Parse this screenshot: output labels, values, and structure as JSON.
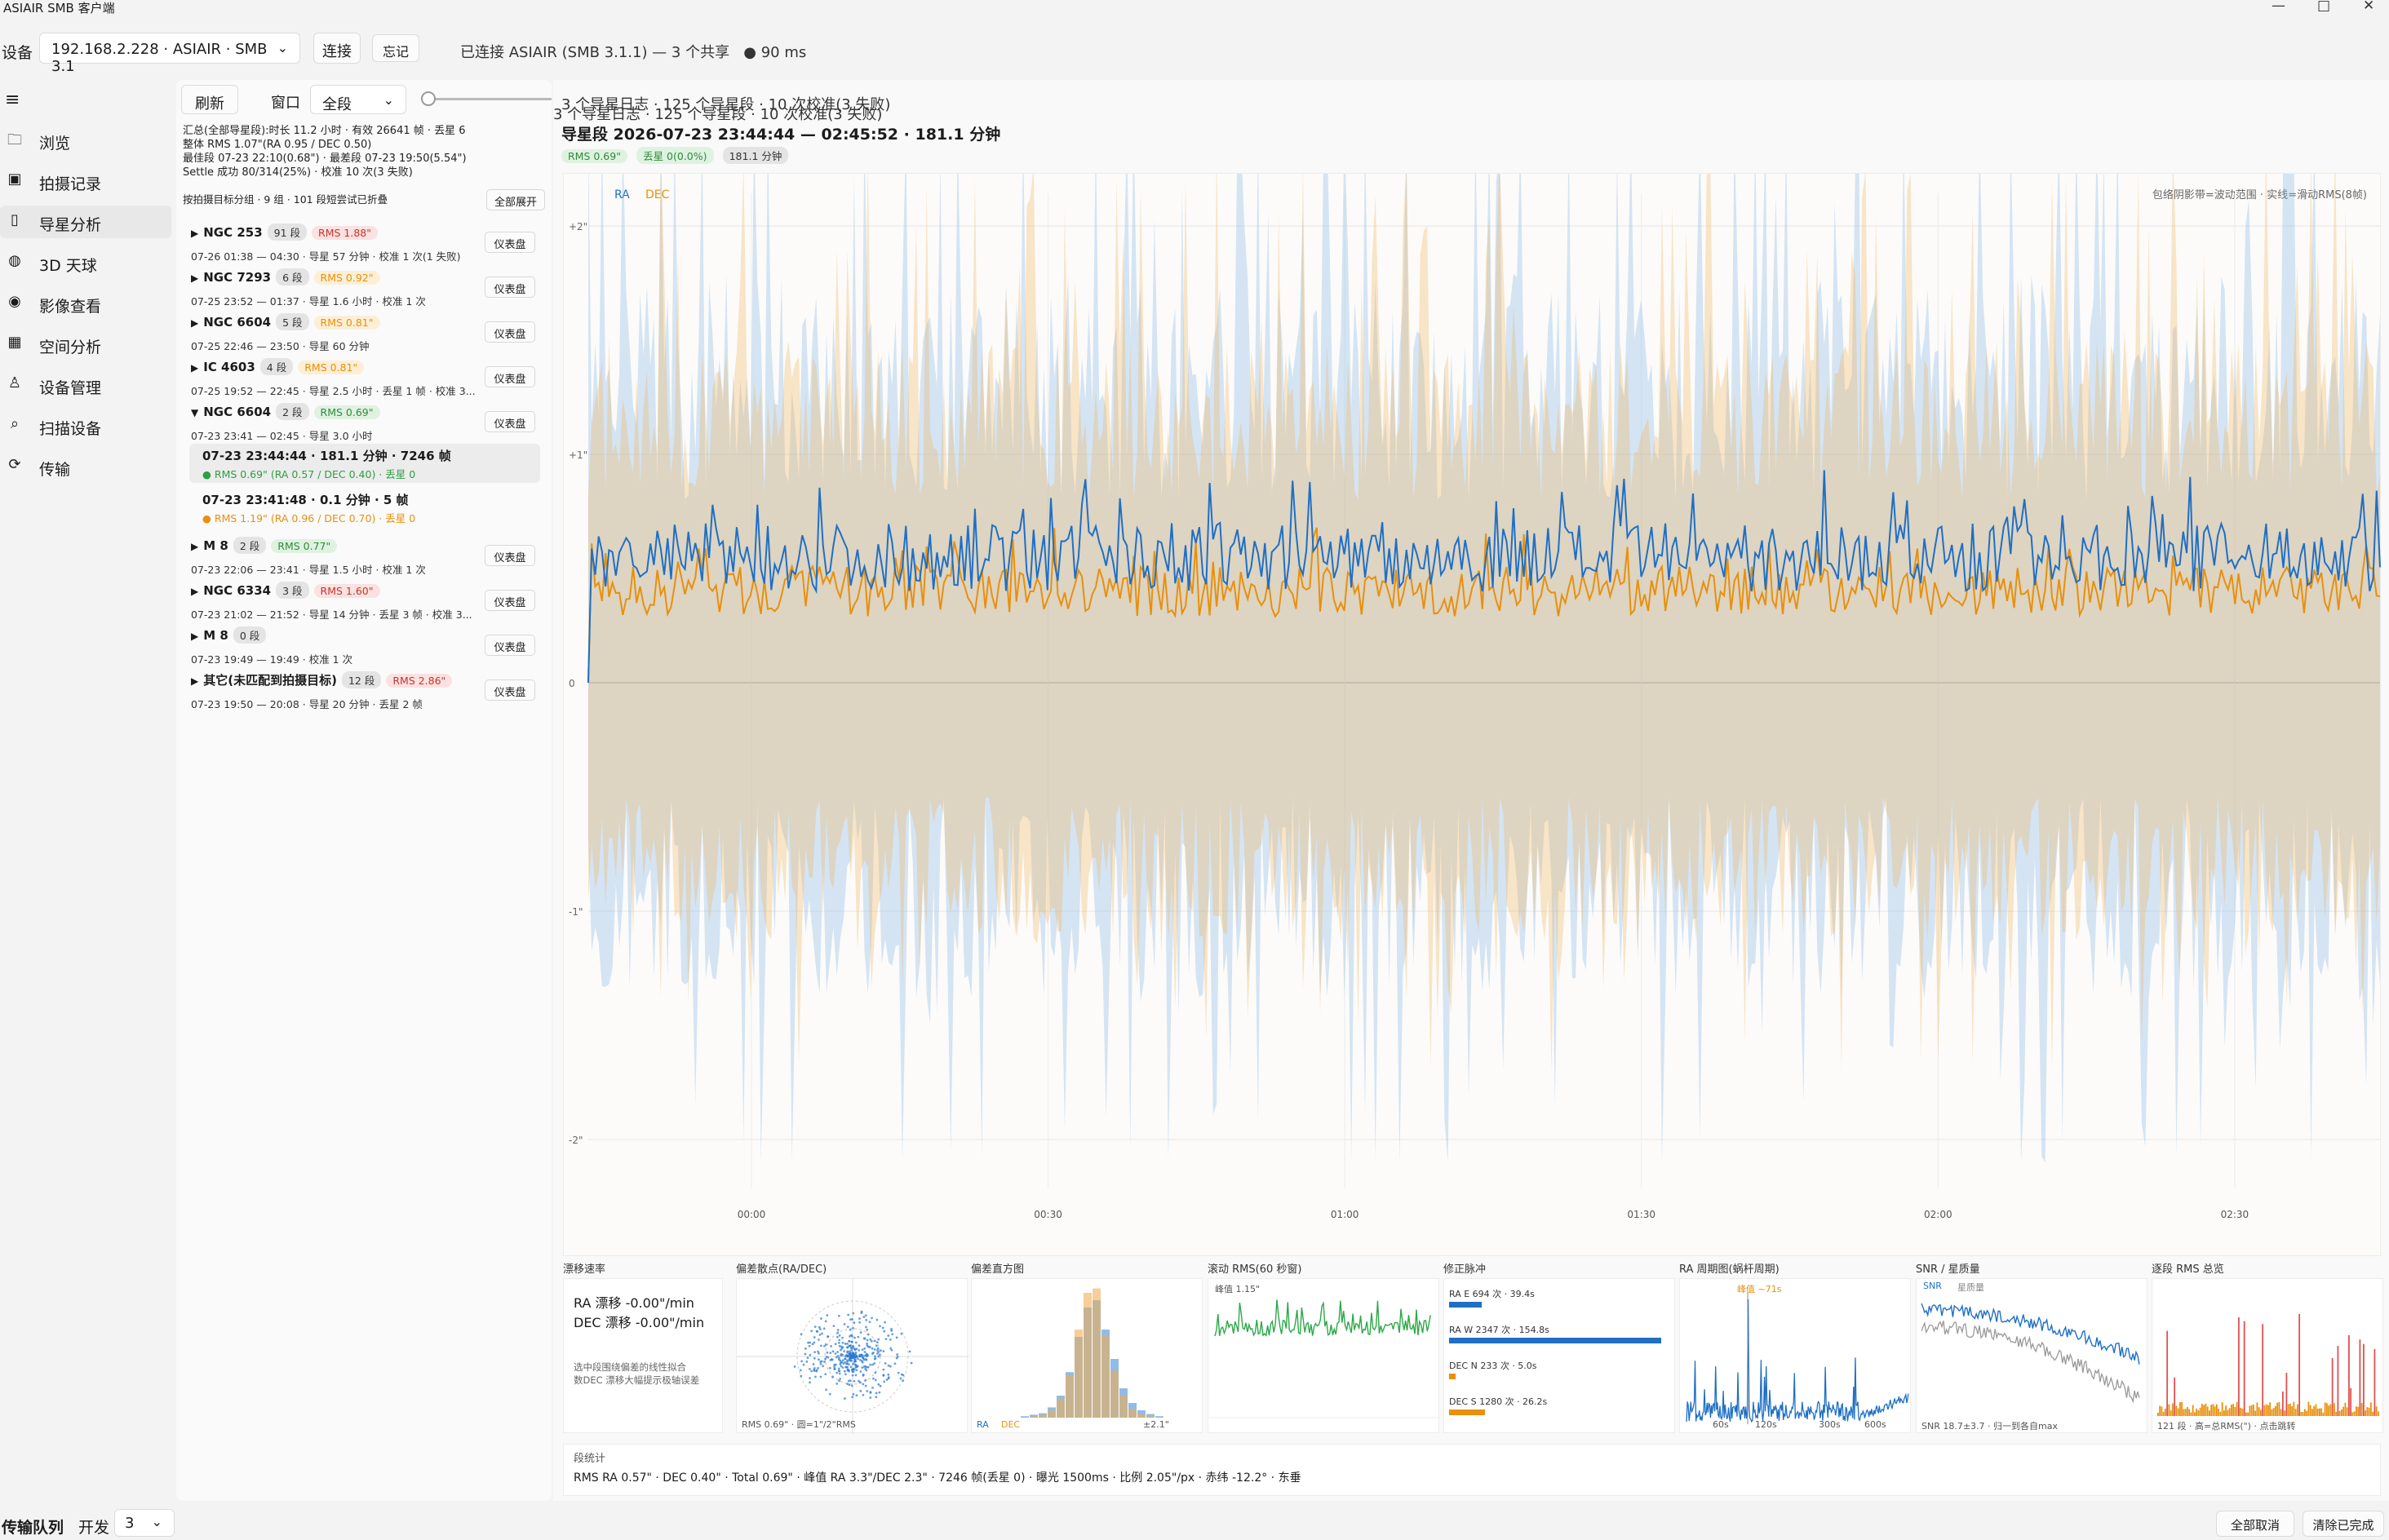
{
  "window": {
    "title": "ASIAIR SMB 客户端",
    "minimize": "—",
    "maximize": "□",
    "close": "✕"
  },
  "device": {
    "label": "设备",
    "selected": "192.168.2.228 · ASIAIR · SMB 3.1",
    "connect": "连接",
    "forget": "忘记",
    "status": "已连接 ASIAIR (SMB 3.1.1) — 3 个共享",
    "latency": "● 90 ms"
  },
  "nav": [
    {
      "label": "浏览",
      "icon": "folder-icon",
      "glyph": "🗀"
    },
    {
      "label": "拍摄记录",
      "icon": "image-record-icon",
      "glyph": "▣"
    },
    {
      "label": "导星分析",
      "icon": "guide-icon",
      "glyph": "▯"
    },
    {
      "label": "3D 天球",
      "icon": "globe-icon",
      "glyph": "◍"
    },
    {
      "label": "影像查看",
      "icon": "eye-icon",
      "glyph": "◉"
    },
    {
      "label": "空间分析",
      "icon": "calculator-icon",
      "glyph": "▦"
    },
    {
      "label": "设备管理",
      "icon": "person-icon",
      "glyph": "♙"
    },
    {
      "label": "扫描设备",
      "icon": "search-icon",
      "glyph": "⌕"
    },
    {
      "label": "传输",
      "icon": "sync-icon",
      "glyph": "⟳"
    }
  ],
  "toolbar": {
    "refresh": "刷新",
    "window_label": "窗口",
    "window_value": "全段",
    "summary": "3 个导星日志 · 125 个导星段 · 10 次校准(3 失败)"
  },
  "stats": {
    "l1": "汇总(全部导星段):时长 11.2 小时 · 有效 26641 帧 · 丢星 6",
    "l2": "整体 RMS 1.07\"(RA 0.95 / DEC 0.50)",
    "l3": "最佳段 07-23 22:10(0.68\") · 最差段 07-23 19:50(5.54\")",
    "l4": "Settle 成功 80/314(25%) · 校准 10 次(3 失败)",
    "l5": "按拍摄目标分组 · 9 组 · 101 段短尝试已折叠",
    "expand_all": "全部展开"
  },
  "groups": [
    {
      "arrow": "▶",
      "name": "NGC 253",
      "count": "91 段",
      "rms": "RMS 1.88\"",
      "rms_class": "p-red",
      "sub": "07-26 01:38 — 04:30 · 导星 57 分钟 · 校准 1 次(1 失败)",
      "dash": "仪表盘"
    },
    {
      "arrow": "▶",
      "name": "NGC 7293",
      "count": "6 段",
      "rms": "RMS 0.92\"",
      "rms_class": "p-orange",
      "sub": "07-25 23:52 — 01:37 · 导星 1.6 小时 · 校准 1 次",
      "dash": "仪表盘"
    },
    {
      "arrow": "▶",
      "name": "NGC 6604",
      "count": "5 段",
      "rms": "RMS 0.81\"",
      "rms_class": "p-orange",
      "sub": "07-25 22:46 — 23:50 · 导星 60 分钟",
      "dash": "仪表盘"
    },
    {
      "arrow": "▶",
      "name": "IC 4603",
      "count": "4 段",
      "rms": "RMS 0.81\"",
      "rms_class": "p-orange",
      "sub": "07-25 19:52 — 22:45 · 导星 2.5 小时 · 丢星 1 帧 · 校准 3...",
      "dash": "仪表盘"
    },
    {
      "arrow": "▼",
      "name": "NGC 6604",
      "count": "2 段",
      "rms": "RMS 0.69\"",
      "rms_class": "p-green",
      "sub": "07-23 23:41 — 02:45 · 导星 3.0 小时",
      "dash": "仪表盘"
    }
  ],
  "segments": [
    {
      "title": "07-23 23:44:44 · 181.1 分钟 · 7246 帧",
      "sub": "● RMS 0.69\" (RA 0.57 / DEC 0.40) · 丢星 0",
      "color": "#2e9e44"
    },
    {
      "title": "07-23 23:41:48 · 0.1 分钟 · 5 帧",
      "sub": "● RMS 1.19\" (RA 0.96 / DEC 0.70) · 丢星 0",
      "color": "#e8900c"
    }
  ],
  "groups2": [
    {
      "arrow": "▶",
      "name": "M 8",
      "count": "2 段",
      "rms": "RMS 0.77\"",
      "rms_class": "p-green",
      "sub": "07-23 22:06 — 23:41 · 导星 1.5 小时 · 校准 1 次",
      "dash": "仪表盘"
    },
    {
      "arrow": "▶",
      "name": "NGC 6334",
      "count": "3 段",
      "rms": "RMS 1.60\"",
      "rms_class": "p-red",
      "sub": "07-23 21:02 — 21:52 · 导星 14 分钟 · 丢星 3 帧 · 校准 3...",
      "dash": "仪表盘"
    },
    {
      "arrow": "▶",
      "name": "M 8",
      "count": "0 段",
      "rms": "",
      "rms_class": "p-gray",
      "sub": "07-23 19:49 — 19:49 · 校准 1 次",
      "dash": "仪表盘"
    },
    {
      "arrow": "▶",
      "name": "其它(未匹配到拍摄目标)",
      "count": "12 段",
      "rms": "RMS 2.86\"",
      "rms_class": "p-red",
      "sub": "07-23 19:50 — 20:08 · 导星 20 分钟 · 丢星 2 帧",
      "dash": "仪表盘"
    }
  ],
  "header": {
    "title": "导星段 2026-07-23 23:44:44 — 02:45:52 · 181.1 分钟",
    "badge_rms": "RMS 0.69\"",
    "badge_lost": "丢星 0(0.0%)",
    "badge_dur": "181.1 分钟"
  },
  "chart_data": {
    "type": "line",
    "legend": [
      "RA",
      "DEC"
    ],
    "note": "包络阴影带=波动范围 · 实线=滑动RMS(8帧)",
    "ylabels": [
      "+2\"",
      "+1\"",
      "0",
      "-1\"",
      "-2\""
    ],
    "xlabels": [
      "00:00",
      "00:30",
      "01:00",
      "01:30",
      "02:00",
      "02:30"
    ],
    "ylim": [
      -2,
      2
    ],
    "series": [
      {
        "name": "RA",
        "color": "#1f6fc4"
      },
      {
        "name": "DEC",
        "color": "#e8900c"
      }
    ]
  },
  "panels": [
    {
      "title": "漂移速率",
      "l1": "RA 漂移 -0.00\"/min",
      "l2": "DEC 漂移 -0.00\"/min",
      "n1": "选中段围绕偏差的线性拟合",
      "n2": "数DEC 漂移大幅提示极轴误差"
    },
    {
      "title": "偏差散点(RA/DEC)",
      "foot": "RMS 0.69\" · 圆=1\"/2\"RMS"
    },
    {
      "title": "偏差直方图",
      "f1": "RA",
      "f2": "DEC",
      "f3": "±2.1\""
    },
    {
      "title": "滚动 RMS(60 秒窗)",
      "peak": "峰值 1.15\""
    },
    {
      "title": "修正脉冲",
      "r1": "RA E  694 次 · 39.4s",
      "r2": "RA W  2347 次 · 154.8s",
      "r3": "DEC N  233 次 · 5.0s",
      "r4": "DEC S  1280 次 · 26.2s"
    },
    {
      "title": "RA 周期图(蜗杆周期)",
      "peak": "峰值 ~71s",
      "x1": "60s",
      "x2": "120s",
      "x3": "300s",
      "x4": "600s"
    },
    {
      "title": "SNR / 星质量",
      "leg1": "SNR",
      "leg2": "星质量",
      "foot": "SNR 18.7±3.7 · 归一到各自max"
    },
    {
      "title": "逐段 RMS 总览",
      "foot": "121 段 · 高=总RMS(\") · 点击跳转"
    }
  ],
  "segstats": {
    "title": "段统计",
    "text": "RMS RA 0.57\" · DEC 0.40\" · Total 0.69\" · 峰值 RA 3.3\"/DEC 2.3\" · 7246 帧(丢星 0) · 曝光 1500ms · 比例 2.05\"/px · 赤纬 -12.2° · 东垂"
  },
  "footer": {
    "queue": "传输队列",
    "concurrency": "开发",
    "conc_value": "3",
    "cancel_all": "全部取消",
    "clear_done": "清除已完成"
  }
}
